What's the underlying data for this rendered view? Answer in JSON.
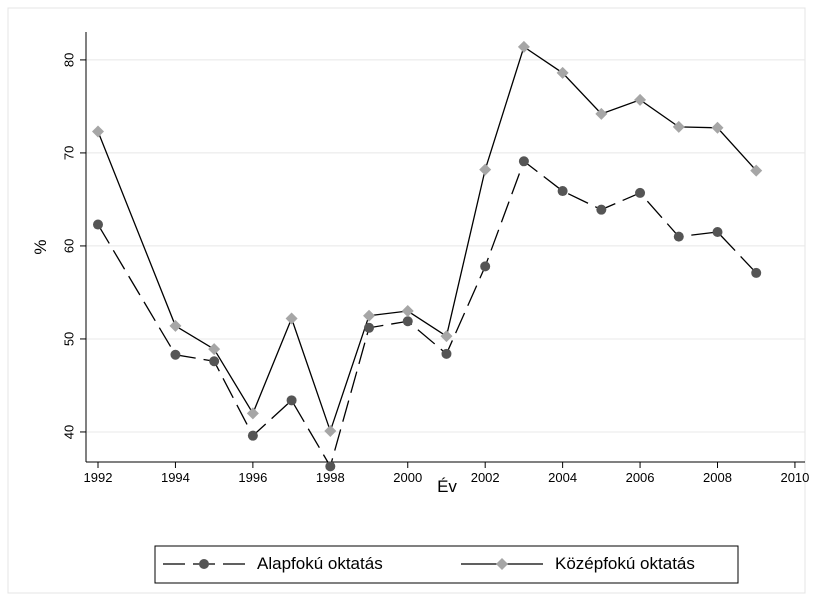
{
  "chart_data": {
    "type": "line",
    "x_label": "Év",
    "y_label": "%",
    "x": [
      1992,
      1994,
      1995,
      1996,
      1997,
      1998,
      1999,
      2000,
      2001,
      2002,
      2003,
      2004,
      2005,
      2006,
      2007,
      2008,
      2009
    ],
    "series": [
      {
        "name": "Alapfokú oktatás",
        "color": "#555555",
        "marker": "circle",
        "line_style": "dashed",
        "values": [
          62.3,
          48.3,
          47.6,
          39.6,
          43.4,
          36.3,
          51.2,
          51.9,
          48.4,
          57.8,
          69.1,
          65.9,
          63.9,
          65.7,
          61.0,
          61.5,
          57.1
        ]
      },
      {
        "name": "Középfokú oktatás",
        "color": "#a6a6a6",
        "marker": "diamond",
        "line_style": "solid",
        "values": [
          72.3,
          51.4,
          48.9,
          42.0,
          52.2,
          40.1,
          52.5,
          53.0,
          50.3,
          68.2,
          81.4,
          78.6,
          74.2,
          75.7,
          72.8,
          72.7,
          68.1
        ]
      }
    ],
    "xlim": [
      1991.69,
      2010.26
    ],
    "xticks": [
      1992,
      1994,
      1996,
      1998,
      2000,
      2002,
      2004,
      2006,
      2008,
      2010
    ],
    "ylim": [
      36.77,
      83.0
    ],
    "yticks": [
      40,
      50,
      60,
      70,
      80
    ],
    "grid": true,
    "legend": "bottom"
  }
}
